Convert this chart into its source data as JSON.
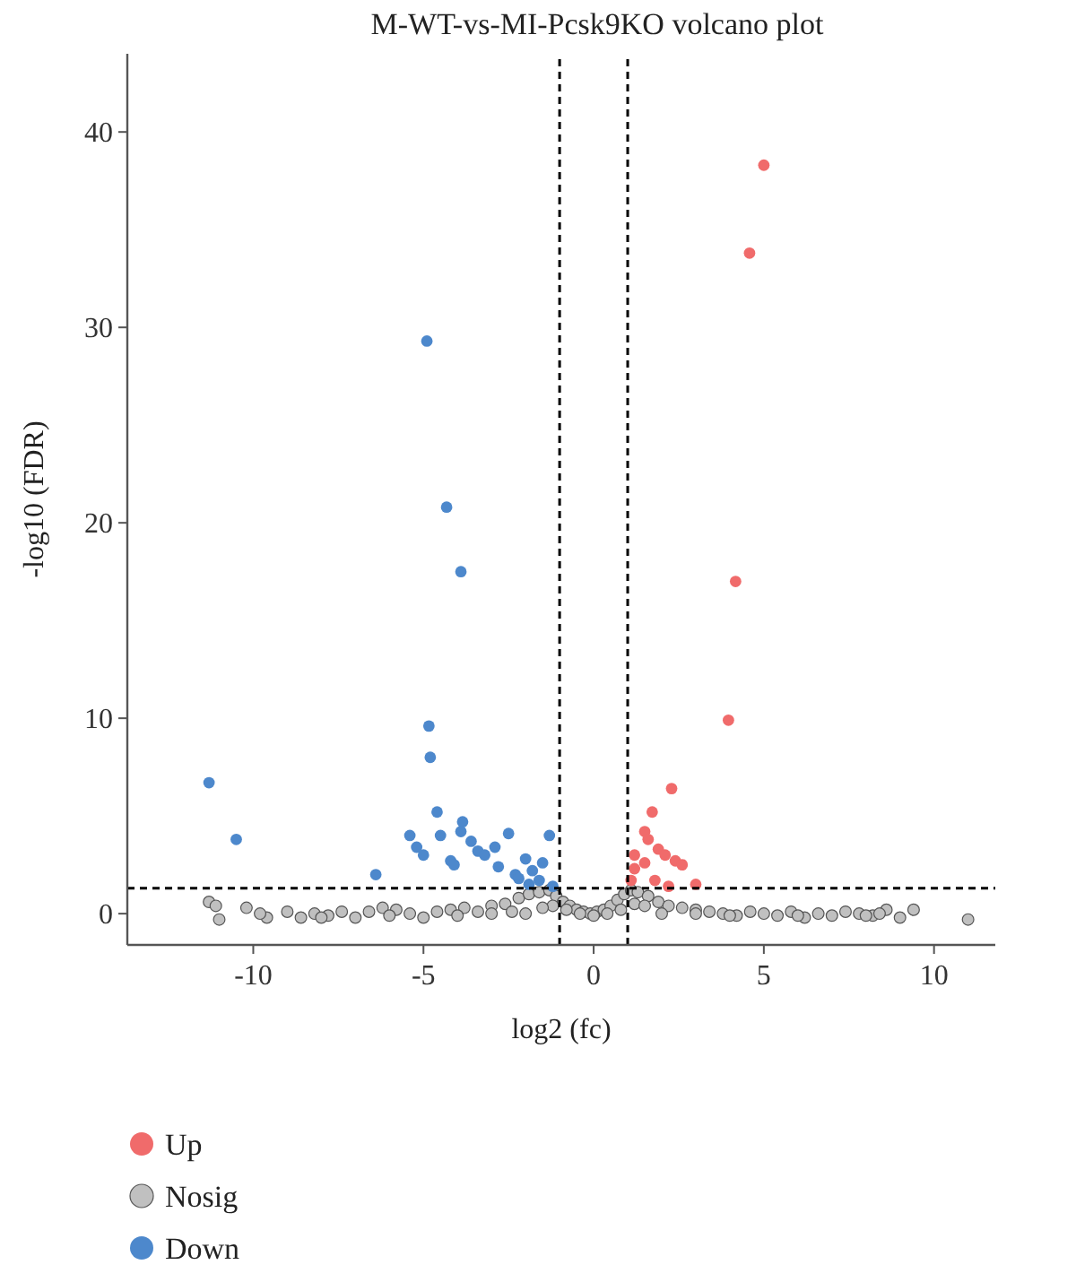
{
  "chart_data": {
    "type": "scatter",
    "title": "M-WT-vs-MI-Pcsk9KO volcano plot",
    "xlabel": "log2 (fc)",
    "ylabel": "-log10 (FDR)",
    "xlim": [
      -13.7,
      11.8
    ],
    "ylim": [
      -1.6,
      44
    ],
    "xticks": [
      -10,
      -5,
      0,
      5,
      10
    ],
    "yticks": [
      0,
      10,
      20,
      30,
      40
    ],
    "grid": false,
    "legend": "bottom left",
    "marker": "circle",
    "ref_lines": [
      {
        "axis": "x",
        "value": -1,
        "line_style": "dashed",
        "color": "#000000"
      },
      {
        "axis": "x",
        "value": 1,
        "line_style": "dashed",
        "color": "#000000"
      },
      {
        "axis": "y",
        "value": 1.3,
        "line_style": "dashed",
        "color": "#000000"
      }
    ],
    "series": [
      {
        "name": "Up",
        "color": "#f06b6b",
        "x": [
          5.0,
          4.58,
          4.17,
          3.96,
          2.29,
          1.72,
          1.5,
          1.6,
          1.9,
          2.1,
          2.4,
          2.6,
          3.0,
          1.2,
          1.1,
          1.8,
          2.2,
          1.2,
          1.5
        ],
        "values": [
          38.3,
          33.8,
          17.0,
          9.9,
          6.4,
          5.2,
          4.2,
          3.8,
          3.3,
          3.0,
          2.7,
          2.5,
          1.5,
          3.0,
          1.7,
          1.7,
          1.4,
          2.3,
          2.6
        ]
      },
      {
        "name": "Nosig",
        "color": "#c0c0c0",
        "x": [
          -11.3,
          -11.1,
          -11.0,
          -10.2,
          -9.6,
          -9.0,
          -8.6,
          -8.2,
          -7.8,
          -7.4,
          -7.0,
          -6.6,
          -6.2,
          -5.8,
          -5.4,
          -5.0,
          -4.6,
          -4.2,
          -3.8,
          -3.4,
          -3.0,
          -2.6,
          -2.2,
          -1.9,
          -1.6,
          -1.3,
          -1.1,
          -0.9,
          -0.7,
          -0.5,
          -0.3,
          -0.1,
          0.1,
          0.3,
          0.5,
          0.7,
          0.9,
          1.1,
          1.3,
          1.6,
          1.9,
          2.2,
          2.6,
          3.0,
          3.4,
          3.8,
          4.2,
          4.6,
          5.0,
          5.4,
          5.8,
          6.2,
          6.6,
          7.0,
          7.4,
          7.8,
          8.2,
          8.6,
          9.0,
          9.4,
          11.0,
          -8.0,
          -6.0,
          -4.0,
          -2.0,
          -1.2,
          -0.8,
          -0.4,
          0,
          0.4,
          0.8,
          1.2,
          2.0,
          4.0,
          6.0,
          8.0,
          -3.0,
          -2.4,
          3.0,
          -1.5,
          1.5,
          -9.8,
          8.4
        ],
        "values": [
          0.6,
          0.4,
          -0.3,
          0.3,
          -0.2,
          0.1,
          -0.2,
          0.0,
          -0.1,
          0.1,
          -0.2,
          0.1,
          0.3,
          0.2,
          0.0,
          -0.2,
          0.1,
          0.2,
          0.3,
          0.1,
          0.4,
          0.5,
          0.8,
          1.0,
          1.1,
          1.2,
          0.9,
          0.6,
          0.4,
          0.2,
          0.1,
          0.0,
          0.1,
          0.2,
          0.4,
          0.7,
          1.0,
          1.2,
          1.1,
          0.9,
          0.6,
          0.4,
          0.3,
          0.2,
          0.1,
          0.0,
          -0.1,
          0.1,
          0.0,
          -0.1,
          0.1,
          -0.2,
          0.0,
          -0.1,
          0.1,
          0.0,
          -0.1,
          0.2,
          -0.2,
          0.2,
          -0.3,
          -0.2,
          -0.1,
          -0.1,
          0.0,
          0.4,
          0.2,
          0.0,
          -0.1,
          0.0,
          0.2,
          0.5,
          0.0,
          -0.1,
          -0.1,
          -0.1,
          0.0,
          0.1,
          0.0,
          0.3,
          0.4,
          0.0,
          0.0
        ]
      },
      {
        "name": "Down",
        "color": "#4d88cc",
        "x": [
          -4.9,
          -4.32,
          -3.9,
          -4.84,
          -4.8,
          -11.3,
          -10.5,
          -4.6,
          -3.85,
          -6.4,
          -5.4,
          -5.2,
          -5.0,
          -4.5,
          -4.2,
          -3.6,
          -3.4,
          -3.2,
          -2.8,
          -2.5,
          -2.3,
          -2.0,
          -1.8,
          -1.6,
          -1.3,
          -2.9,
          -3.9,
          -4.1,
          -2.2,
          -1.5,
          -1.9,
          -1.2
        ],
        "values": [
          29.3,
          20.8,
          17.5,
          9.6,
          8.0,
          6.7,
          3.8,
          5.2,
          4.7,
          2.0,
          4.0,
          3.4,
          3.0,
          4.0,
          2.7,
          3.7,
          3.2,
          3.0,
          2.4,
          4.1,
          2.0,
          2.8,
          2.2,
          1.7,
          4.0,
          3.4,
          4.2,
          2.5,
          1.8,
          2.6,
          1.5,
          1.4
        ]
      }
    ]
  }
}
